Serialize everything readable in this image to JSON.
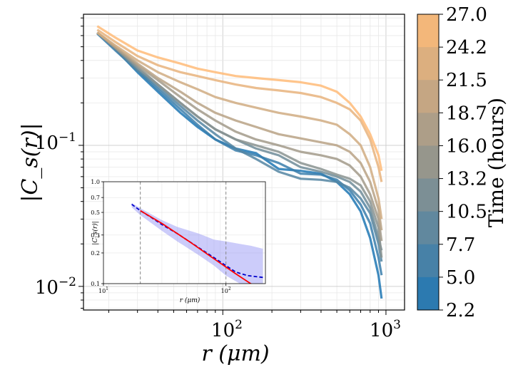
{
  "chart_data": [
    {
      "type": "line",
      "title": "",
      "xlabel": "r (μm)",
      "ylabel": "|C_s(r)|",
      "xscale": "log",
      "yscale": "log",
      "xlim": [
        14,
        1300
      ],
      "ylim": [
        0.0068,
        0.85
      ],
      "x_ticklabels": [
        "10^2",
        "10^3"
      ],
      "x_ticks": [
        100,
        1000
      ],
      "y_ticklabels": [
        "10^-1",
        "10^-2"
      ],
      "y_ticks": [
        0.1,
        0.01
      ],
      "grid": true,
      "series": [
        {
          "name": "t=2.2",
          "time": 2.2,
          "x": [
            17,
            22,
            30,
            40,
            55,
            70,
            90,
            120,
            160,
            220,
            300,
            400,
            500,
            600,
            700,
            800,
            900,
            940
          ],
          "y": [
            0.63,
            0.48,
            0.33,
            0.24,
            0.17,
            0.135,
            0.11,
            0.095,
            0.088,
            0.068,
            0.066,
            0.063,
            0.055,
            0.045,
            0.034,
            0.022,
            0.012,
            0.0082
          ]
        },
        {
          "name": "t=5.0",
          "time": 5.0,
          "x": [
            17,
            22,
            30,
            40,
            55,
            70,
            90,
            120,
            160,
            220,
            300,
            400,
            500,
            600,
            700,
            800,
            900,
            940
          ],
          "y": [
            0.62,
            0.47,
            0.34,
            0.25,
            0.18,
            0.14,
            0.11,
            0.092,
            0.085,
            0.075,
            0.063,
            0.062,
            0.057,
            0.048,
            0.038,
            0.028,
            0.016,
            0.012
          ]
        },
        {
          "name": "t=7.7",
          "time": 7.7,
          "x": [
            17,
            22,
            30,
            40,
            55,
            70,
            90,
            120,
            160,
            220,
            300,
            400,
            500,
            600,
            700,
            800,
            900,
            940
          ],
          "y": [
            0.63,
            0.48,
            0.34,
            0.26,
            0.19,
            0.15,
            0.12,
            0.095,
            0.08,
            0.065,
            0.058,
            0.057,
            0.055,
            0.05,
            0.042,
            0.033,
            0.02,
            0.015
          ]
        },
        {
          "name": "t=10.5",
          "time": 10.5,
          "x": [
            17,
            22,
            30,
            40,
            55,
            70,
            90,
            120,
            160,
            220,
            300,
            400,
            500,
            600,
            700,
            800,
            900,
            940
          ],
          "y": [
            0.63,
            0.49,
            0.35,
            0.27,
            0.2,
            0.16,
            0.13,
            0.11,
            0.095,
            0.085,
            0.07,
            0.065,
            0.06,
            0.055,
            0.047,
            0.036,
            0.022,
            0.018
          ]
        },
        {
          "name": "t=13.2",
          "time": 13.2,
          "x": [
            17,
            22,
            30,
            40,
            55,
            70,
            90,
            120,
            160,
            220,
            300,
            400,
            500,
            600,
            700,
            800,
            900,
            940
          ],
          "y": [
            0.63,
            0.49,
            0.36,
            0.27,
            0.2,
            0.16,
            0.13,
            0.11,
            0.1,
            0.09,
            0.075,
            0.068,
            0.062,
            0.058,
            0.052,
            0.04,
            0.026,
            0.016
          ]
        },
        {
          "name": "t=16.0",
          "time": 16.0,
          "x": [
            17,
            22,
            30,
            40,
            55,
            70,
            90,
            120,
            160,
            220,
            300,
            400,
            500,
            600,
            700,
            800,
            900,
            940
          ],
          "y": [
            0.63,
            0.49,
            0.37,
            0.29,
            0.22,
            0.18,
            0.15,
            0.125,
            0.11,
            0.1,
            0.09,
            0.085,
            0.08,
            0.072,
            0.06,
            0.045,
            0.03,
            0.021
          ]
        },
        {
          "name": "t=18.7",
          "time": 18.7,
          "x": [
            17,
            22,
            30,
            40,
            55,
            70,
            90,
            120,
            160,
            220,
            300,
            400,
            500,
            600,
            700,
            800,
            900,
            940
          ],
          "y": [
            0.63,
            0.5,
            0.38,
            0.3,
            0.24,
            0.2,
            0.17,
            0.15,
            0.135,
            0.12,
            0.112,
            0.105,
            0.1,
            0.09,
            0.075,
            0.055,
            0.035,
            0.025
          ]
        },
        {
          "name": "t=21.5",
          "time": 21.5,
          "x": [
            17,
            22,
            30,
            40,
            55,
            70,
            90,
            120,
            160,
            220,
            300,
            400,
            500,
            600,
            700,
            800,
            900,
            940
          ],
          "y": [
            0.63,
            0.51,
            0.4,
            0.33,
            0.28,
            0.25,
            0.22,
            0.2,
            0.185,
            0.17,
            0.16,
            0.15,
            0.14,
            0.12,
            0.1,
            0.07,
            0.042,
            0.03
          ]
        },
        {
          "name": "t=24.2",
          "time": 24.2,
          "x": [
            17,
            22,
            30,
            40,
            55,
            70,
            90,
            120,
            160,
            220,
            300,
            400,
            500,
            600,
            700,
            800,
            900,
            940
          ],
          "y": [
            0.66,
            0.54,
            0.43,
            0.37,
            0.33,
            0.31,
            0.29,
            0.27,
            0.255,
            0.245,
            0.235,
            0.22,
            0.2,
            0.18,
            0.15,
            0.11,
            0.07,
            0.055
          ]
        },
        {
          "name": "t=27.0",
          "time": 27.0,
          "x": [
            17,
            22,
            30,
            40,
            55,
            70,
            90,
            120,
            160,
            220,
            300,
            400,
            500,
            600,
            700,
            800,
            900,
            940
          ],
          "y": [
            0.7,
            0.58,
            0.47,
            0.42,
            0.38,
            0.35,
            0.33,
            0.31,
            0.3,
            0.29,
            0.28,
            0.265,
            0.24,
            0.2,
            0.16,
            0.12,
            0.085,
            0.066
          ]
        }
      ],
      "colorbar": {
        "label": "Time (hours)",
        "ticklabels": [
          "27.0",
          "24.2",
          "21.5",
          "18.7",
          "16.0",
          "13.2",
          "10.5",
          "7.7",
          "5.0",
          "2.2"
        ],
        "min": 2.2,
        "max": 27.0,
        "color_low": "#1f77b4",
        "color_high": "#ffbb78"
      }
    },
    {
      "type": "line",
      "title": "",
      "role": "inset",
      "xlabel": "r (μm)",
      "ylabel": "|C_s(r)|",
      "xscale": "log",
      "yscale": "log",
      "xlim": [
        10,
        210
      ],
      "ylim": [
        0.1,
        1.0
      ],
      "x_ticklabels": [
        "10^1",
        "10^2"
      ],
      "x_ticks": [
        10,
        100
      ],
      "y_ticklabels": [
        "1.0",
        "0.7",
        "0.5",
        "0.3",
        "0.2",
        "0.1"
      ],
      "y_ticks": [
        1.0,
        0.7,
        0.5,
        0.3,
        0.2,
        0.1
      ],
      "vertical_lines": [
        20,
        100
      ],
      "band": {
        "x": [
          17,
          20,
          30,
          40,
          60,
          80,
          100,
          130,
          160,
          200
        ],
        "upper": [
          0.62,
          0.55,
          0.42,
          0.36,
          0.31,
          0.27,
          0.26,
          0.245,
          0.235,
          0.22
        ],
        "lower": [
          0.56,
          0.47,
          0.33,
          0.26,
          0.19,
          0.15,
          0.12,
          0.1,
          0.09,
          0.08
        ]
      },
      "series": [
        {
          "name": "mean",
          "style": "dashed",
          "color": "#0000cc",
          "x": [
            17,
            20,
            25,
            30,
            40,
            50,
            60,
            80,
            100,
            120,
            150,
            200
          ],
          "y": [
            0.6,
            0.52,
            0.44,
            0.38,
            0.31,
            0.26,
            0.225,
            0.18,
            0.15,
            0.13,
            0.12,
            0.115
          ]
        },
        {
          "name": "fit",
          "style": "solid",
          "color": "#ff0000",
          "x": [
            20,
            30,
            50,
            80,
            120,
            170
          ],
          "y": [
            0.52,
            0.39,
            0.26,
            0.175,
            0.125,
            0.095
          ]
        }
      ]
    }
  ]
}
